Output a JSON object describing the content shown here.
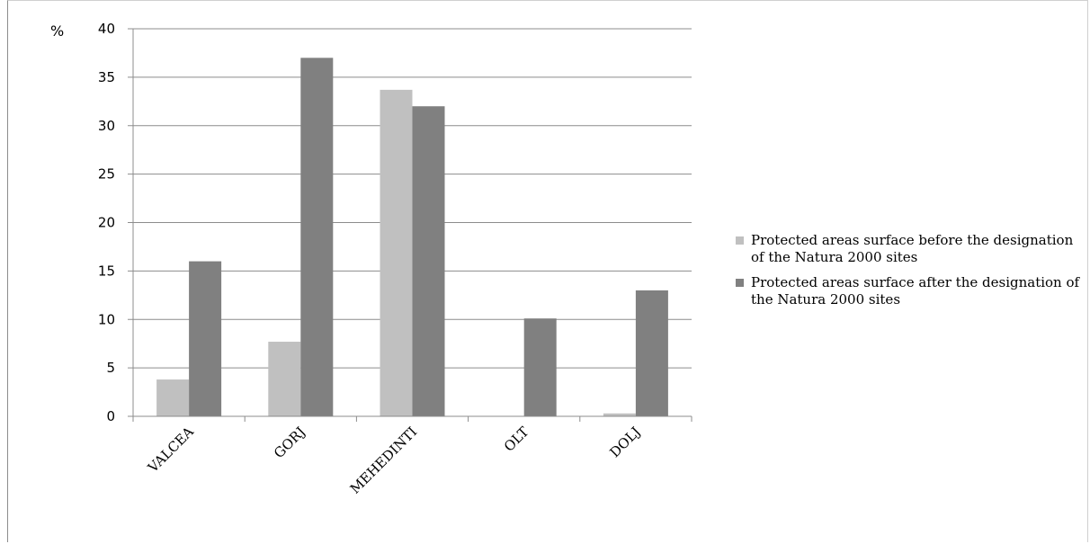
{
  "chart_data": {
    "type": "bar",
    "ylabel": "%",
    "ylim": [
      0,
      40
    ],
    "yticks": [
      0,
      5,
      10,
      15,
      20,
      25,
      30,
      35,
      40
    ],
    "grid": true,
    "legend_position": "right",
    "categories": [
      "VALCEA",
      "GORJ",
      "MEHEDINTI",
      "OLT",
      "DOLJ"
    ],
    "series": [
      {
        "name": "Protected areas surface before the designation of the Natura 2000 sites",
        "color": "#c0c0c0",
        "values": [
          3.8,
          7.7,
          33.7,
          0,
          0.3
        ]
      },
      {
        "name": "Protected areas surface after the designation of the Natura 2000 sites",
        "color": "#808080",
        "values": [
          16,
          37,
          32,
          10.1,
          13
        ]
      }
    ]
  }
}
